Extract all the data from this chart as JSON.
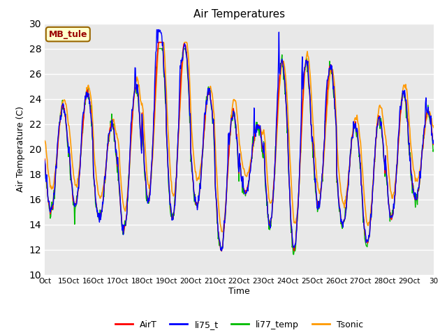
{
  "title": "Air Temperatures",
  "ylabel": "Air Temperature (C)",
  "xlabel": "Time",
  "ylim": [
    10,
    30
  ],
  "yticks": [
    10,
    12,
    14,
    16,
    18,
    20,
    22,
    24,
    26,
    28,
    30
  ],
  "site_label": "MB_tule",
  "xtick_labels": [
    "Oct",
    "15Oct",
    "16Oct",
    "17Oct",
    "18Oct",
    "19Oct",
    "20Oct",
    "21Oct",
    "22Oct",
    "23Oct",
    "24Oct",
    "25Oct",
    "26Oct",
    "27Oct",
    "28Oct",
    "29Oct",
    "30"
  ],
  "colors": {
    "AirT": "#ff0000",
    "li75_t": "#0000ff",
    "li77_temp": "#00bb00",
    "Tsonic": "#ff9900"
  },
  "background_color": "#e8e8e8",
  "figure_background": "#ffffff",
  "legend_labels": [
    "AirT",
    "li75_t",
    "li77_temp",
    "Tsonic"
  ]
}
